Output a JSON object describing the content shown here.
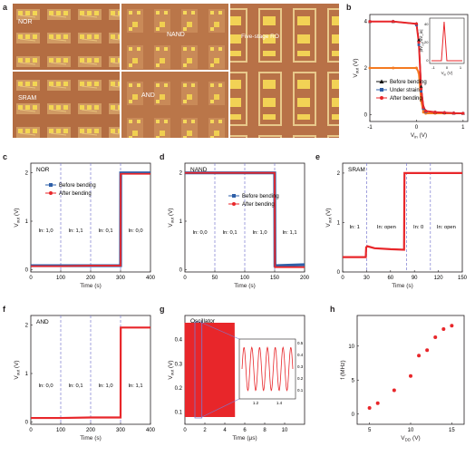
{
  "panels": {
    "a": {
      "letter": "a",
      "photo_labels": [
        "NOR",
        "NAND",
        "Five-stage RO",
        "SRAM",
        "AND"
      ],
      "colors": {
        "photo_bg": "#b77146",
        "chip": "#d9a26a",
        "pad": "#f2d255"
      }
    },
    "b": {
      "letter": "b",
      "xlabel": "V_in (V)",
      "ylabel": "V_out (V)",
      "xticks": [
        "-1",
        "0",
        "1"
      ],
      "yticks": [
        "0",
        "2",
        "4"
      ],
      "legend": [
        "Before bending",
        "Under strain",
        "After bending"
      ],
      "inset": {
        "xlabel": "V_in (V)",
        "ylabel": "|dV_out/dV_in|",
        "xticks": [
          "-1",
          "0",
          "1"
        ],
        "yticks": [
          "0",
          "20",
          "40"
        ]
      }
    },
    "c": {
      "letter": "c",
      "label": "NOR",
      "xlabel": "Time (s)",
      "ylabel": "V_out (V)",
      "xticks": [
        "0",
        "100",
        "200",
        "300",
        "400"
      ],
      "yticks": [
        "0",
        "1",
        "2"
      ],
      "legend": [
        "Before bending",
        "After bending"
      ],
      "states": [
        "In: 1,0",
        "In: 1,1",
        "In: 0,1",
        "In: 0,0"
      ]
    },
    "d": {
      "letter": "d",
      "label": "NAND",
      "xlabel": "Time (s)",
      "ylabel": "V_out (V)",
      "xticks": [
        "0",
        "50",
        "100",
        "150",
        "200"
      ],
      "yticks": [
        "0",
        "1",
        "2"
      ],
      "legend": [
        "Before bending",
        "After bending"
      ],
      "states": [
        "In: 0,0",
        "In: 0,1",
        "In: 1,0",
        "In: 1,1"
      ]
    },
    "e": {
      "letter": "e",
      "label": "SRAM",
      "xlabel": "Time (s)",
      "ylabel": "V_out (V)",
      "xticks": [
        "0",
        "30",
        "60",
        "90",
        "120",
        "150"
      ],
      "yticks": [
        "0",
        "1",
        "2"
      ],
      "states": [
        "In: 1",
        "In: open",
        "In: 0",
        "In: open"
      ]
    },
    "f": {
      "letter": "f",
      "label": "AND",
      "xlabel": "Time (s)",
      "ylabel": "V_out (V)",
      "xticks": [
        "0",
        "100",
        "200",
        "300",
        "400"
      ],
      "yticks": [
        "0",
        "1",
        "2"
      ],
      "states": [
        "In: 0,0",
        "In: 0,1",
        "In: 1,0",
        "In: 1,1"
      ]
    },
    "g": {
      "letter": "g",
      "label": "Oscillator",
      "xlabel": "Time (μs)",
      "ylabel": "V_out (V)",
      "xticks": [
        "0",
        "2",
        "4",
        "6",
        "8",
        "10"
      ],
      "yticks": [
        "0.1",
        "0.2",
        "0.3",
        "0.4"
      ],
      "inset_xticks": [
        "1.2",
        "1.4"
      ],
      "inset_yticks": [
        "0.5",
        "0.4",
        "0.3",
        "0.2",
        "0.1"
      ]
    },
    "h": {
      "letter": "h",
      "xlabel": "V_DD (V)",
      "ylabel": "f (MHz)",
      "xticks": [
        "5",
        "10",
        "15"
      ],
      "yticks": [
        "0",
        "5",
        "10"
      ]
    }
  },
  "colors": {
    "blue": "#2e5fa8",
    "red": "#e8262a",
    "black": "#111111",
    "orange": "#f47a20",
    "dash": "#7a7ad0"
  },
  "chart_data": [
    {
      "panel": "b",
      "type": "line",
      "x": [
        -1.0,
        -0.5,
        0.0,
        0.05,
        0.1,
        0.15,
        0.2,
        0.4,
        0.6,
        0.8,
        1.0
      ],
      "series": [
        {
          "name": "Before bending",
          "values": [
            4.0,
            4.0,
            3.9,
            3.2,
            1.2,
            0.3,
            0.15,
            0.1,
            0.08,
            0.06,
            0.05
          ]
        },
        {
          "name": "Under strain",
          "values": [
            4.0,
            4.0,
            3.85,
            3.0,
            1.0,
            0.25,
            0.12,
            0.1,
            0.08,
            0.06,
            0.05
          ]
        },
        {
          "name": "After bending",
          "values": [
            4.0,
            4.0,
            3.9,
            3.1,
            1.1,
            0.3,
            0.15,
            0.1,
            0.08,
            0.06,
            0.05
          ]
        }
      ],
      "extra_series_orange": [
        2.0,
        2.0,
        2.0,
        1.8,
        0.6,
        0.1,
        0.05,
        0.05,
        0.05,
        0.05,
        0.05
      ],
      "xlim": [
        -1,
        1.1
      ],
      "ylim": [
        -0.3,
        4.3
      ]
    },
    {
      "panel": "c",
      "type": "line",
      "x": [
        0,
        100,
        200,
        300,
        300.5,
        400
      ],
      "series": [
        {
          "name": "Before bending",
          "values": [
            0.08,
            0.08,
            0.08,
            0.08,
            2.0,
            2.0
          ]
        },
        {
          "name": "After bending",
          "values": [
            0.07,
            0.07,
            0.08,
            0.08,
            1.98,
            1.98
          ]
        }
      ],
      "xlim": [
        0,
        400
      ],
      "ylim": [
        -0.05,
        2.2
      ],
      "switch_times": [
        100,
        200,
        300
      ]
    },
    {
      "panel": "d",
      "type": "line",
      "x": [
        0,
        50,
        100,
        150,
        150.5,
        200
      ],
      "series": [
        {
          "name": "Before bending",
          "values": [
            2.0,
            2.0,
            2.0,
            2.0,
            0.08,
            0.1
          ]
        },
        {
          "name": "After bending",
          "values": [
            2.0,
            2.0,
            2.0,
            2.0,
            0.05,
            0.05
          ]
        }
      ],
      "xlim": [
        0,
        200
      ],
      "ylim": [
        -0.05,
        2.2
      ],
      "switch_times": [
        50,
        100,
        150
      ]
    },
    {
      "panel": "e",
      "type": "line",
      "x": [
        0,
        29,
        29.5,
        31,
        40,
        60,
        77,
        77.5,
        110,
        150
      ],
      "values": [
        0.3,
        0.3,
        0.5,
        0.52,
        0.48,
        0.46,
        0.45,
        2.0,
        2.0,
        2.0
      ],
      "xlim": [
        0,
        150
      ],
      "ylim": [
        0,
        2.2
      ],
      "switch_times": [
        30,
        80,
        110
      ]
    },
    {
      "panel": "f",
      "type": "line",
      "x": [
        0,
        100,
        200,
        300,
        300.5,
        400
      ],
      "values": [
        0.08,
        0.08,
        0.09,
        0.09,
        1.95,
        1.95
      ],
      "xlim": [
        0,
        400
      ],
      "ylim": [
        -0.05,
        2.2
      ],
      "switch_times": [
        100,
        200,
        300
      ]
    },
    {
      "panel": "g",
      "type": "line",
      "note": "oscillation",
      "xlim": [
        0,
        12
      ],
      "ylim": [
        0.05,
        0.5
      ],
      "envelope": [
        0.08,
        0.47
      ],
      "signal_x_range": [
        0,
        5
      ]
    },
    {
      "panel": "h",
      "type": "scatter",
      "x": [
        5,
        6,
        8,
        10,
        11,
        12,
        13,
        14,
        15
      ],
      "values": [
        0.9,
        1.6,
        3.5,
        5.6,
        8.6,
        9.4,
        11.3,
        12.5,
        13.0
      ],
      "xlim": [
        3.5,
        16.5
      ],
      "ylim": [
        -1.5,
        14.5
      ]
    }
  ]
}
